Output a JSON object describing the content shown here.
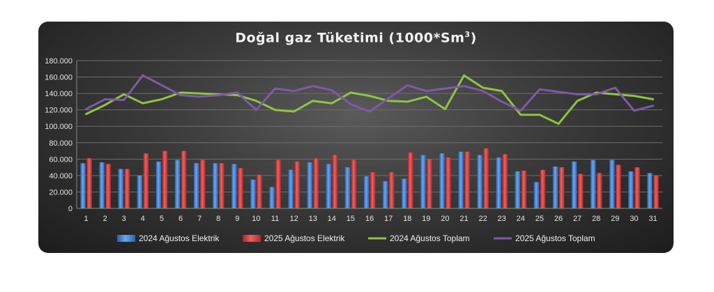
{
  "chart_data": {
    "type": "bar",
    "title_main": "Doğal gaz Tüketimi (1000*Sm",
    "title_sup": "3",
    "title_end": ")",
    "categories": [
      "1",
      "2",
      "3",
      "4",
      "5",
      "6",
      "7",
      "8",
      "9",
      "10",
      "11",
      "12",
      "13",
      "14",
      "15",
      "16",
      "17",
      "18",
      "19",
      "20",
      "21",
      "22",
      "23",
      "24",
      "25",
      "26",
      "27",
      "28",
      "29",
      "30",
      "31"
    ],
    "y_ticks": [
      "0",
      "20.000",
      "40.000",
      "60.000",
      "80.000",
      "100.000",
      "120.000",
      "140.000",
      "160.000",
      "180.000"
    ],
    "ylim": [
      0,
      180000
    ],
    "grid": true,
    "legend_position": "bottom",
    "series": [
      {
        "name": "2024 Ağustos Elektrik",
        "kind": "bar",
        "color": "#3f7fd0",
        "values": [
          55000,
          56000,
          48000,
          40000,
          57000,
          59000,
          55000,
          55000,
          54000,
          35000,
          26000,
          47000,
          56000,
          54000,
          50000,
          39000,
          33000,
          36000,
          65000,
          67000,
          69000,
          65000,
          62000,
          45000,
          32000,
          51000,
          57000,
          59000,
          59000,
          45000,
          43000
        ]
      },
      {
        "name": "2025 Ağustos Elektrik",
        "kind": "bar",
        "color": "#d83a3a",
        "values": [
          61000,
          54000,
          48000,
          67000,
          70000,
          70000,
          59000,
          55000,
          49000,
          41000,
          59000,
          57000,
          61000,
          65000,
          59000,
          44000,
          44000,
          68000,
          60000,
          62000,
          69000,
          73000,
          66000,
          46000,
          47000,
          50000,
          42000,
          43000,
          53000,
          50000,
          40000
        ]
      },
      {
        "name": "2024 Ağustos Toplam",
        "kind": "line",
        "color": "#8dc63f",
        "values": [
          115000,
          126000,
          139000,
          128000,
          133000,
          141000,
          140000,
          139000,
          138000,
          131000,
          120000,
          118000,
          131000,
          128000,
          141000,
          137000,
          131000,
          130000,
          136000,
          121000,
          162000,
          147000,
          143000,
          114000,
          114000,
          103000,
          131000,
          141000,
          139000,
          137000,
          133000
        ]
      },
      {
        "name": "2025 Ağustos Toplam",
        "kind": "line",
        "color": "#7e5aa6",
        "values": [
          121000,
          133000,
          132000,
          162000,
          150000,
          138000,
          136000,
          138000,
          141000,
          120000,
          146000,
          143000,
          149000,
          144000,
          127000,
          118000,
          134000,
          150000,
          143000,
          146000,
          149000,
          143000,
          130000,
          119000,
          145000,
          142000,
          139000,
          139000,
          147000,
          119000,
          125000
        ]
      }
    ]
  }
}
